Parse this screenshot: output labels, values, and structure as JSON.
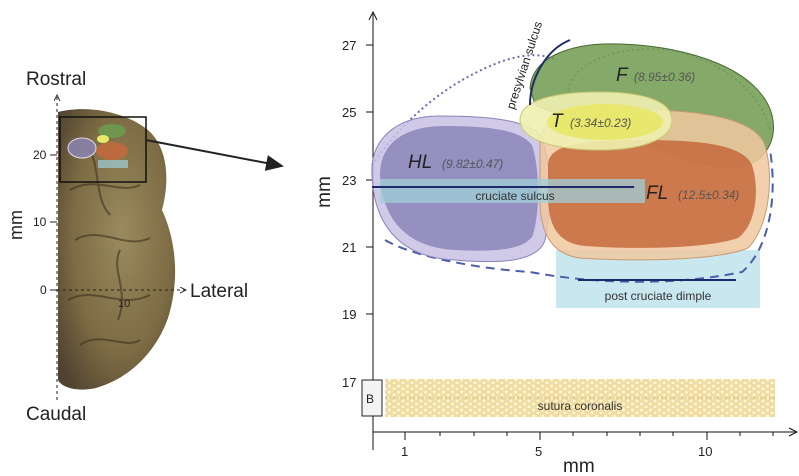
{
  "left_panel": {
    "rostral_label": "Rostral",
    "caudal_label": "Caudal",
    "lateral_label": "Lateral",
    "axis_label": "mm",
    "ticks": [
      "20",
      "10",
      "0"
    ],
    "x_tick": "10"
  },
  "right_panel": {
    "x_label": "mm",
    "y_label": "mm",
    "y_ticks": [
      "27",
      "25",
      "23",
      "21",
      "19",
      "17"
    ],
    "x_ticks": [
      "1",
      "5",
      "10"
    ],
    "regions": {
      "hl": {
        "name": "HL",
        "value": "(9.82±0.47)",
        "color": "#8b86b8"
      },
      "fl": {
        "name": "FL",
        "value": "(12.5±0.34)",
        "color": "#c46a3c"
      },
      "f": {
        "name": "F",
        "value": "(8.95±0.36)",
        "color": "#6e9a4e"
      },
      "t": {
        "name": "T",
        "value": "(3.34±0.23)",
        "color": "#e8e86a"
      }
    },
    "sulci": {
      "presylvian": "presylvian sulcus",
      "cruciate": "cruciate sulcus",
      "post_cruciate": "post cruciate dimple",
      "sutura": "sutura coronalis"
    },
    "marker": "B"
  },
  "colors": {
    "outline_dashed": "#4a5fa8",
    "cruciate_box": "#9fcfd8",
    "dimple_box": "#bfe3ec",
    "sutura_fill": "#f0dca0"
  }
}
